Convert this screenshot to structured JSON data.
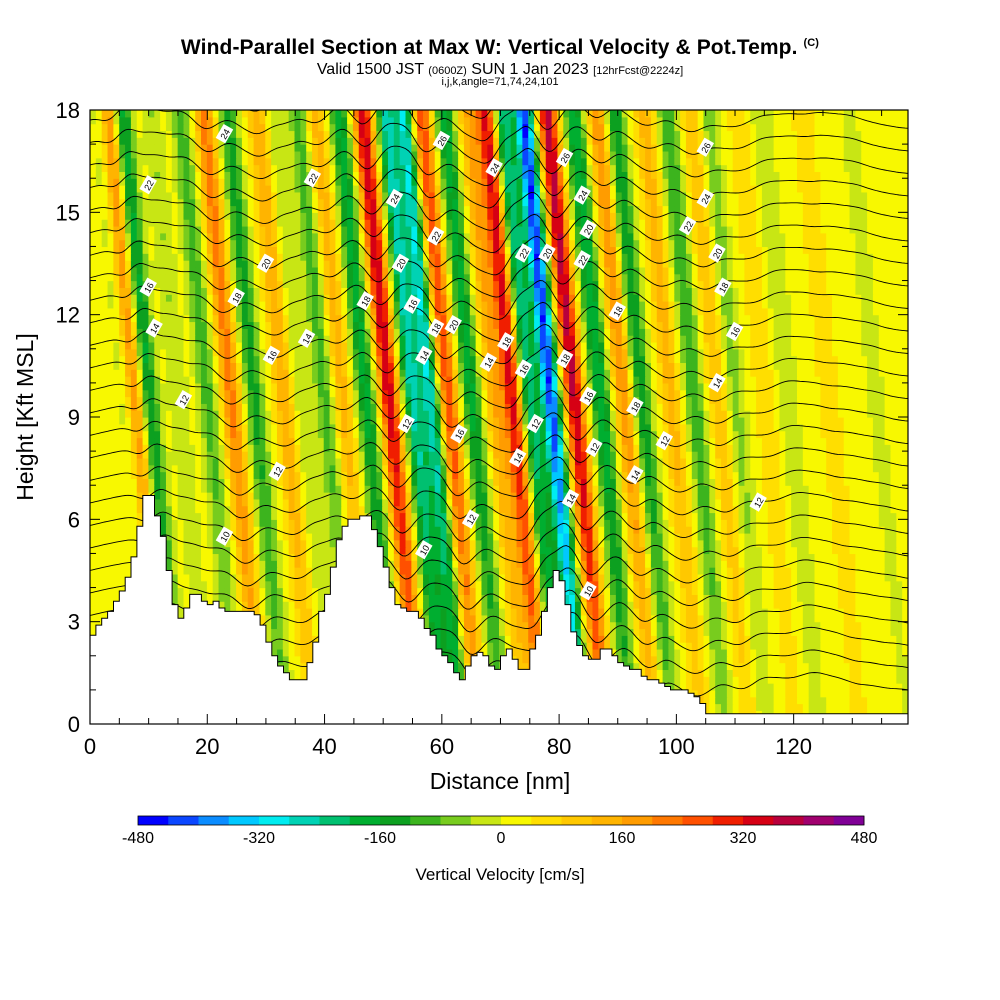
{
  "title": {
    "main": "Wind-Parallel Section at Max W: Vertical Velocity & Pot.Temp.",
    "copyright": "(C)",
    "valid_prefix": "Valid 1500 JST",
    "valid_utc": "(0600Z)",
    "valid_date": "SUN 1 Jan 2023",
    "forecast": "[12hrFcst@2224z]",
    "indices": "i,j,k,angle=71,74,24,101"
  },
  "chart_data": {
    "type": "heatmap",
    "xlabel": "Distance [nm]",
    "ylabel": "Height [Kft MSL]",
    "x_range": [
      0,
      139.5
    ],
    "y_range": [
      0,
      18
    ],
    "x_ticks": [
      0,
      20,
      40,
      60,
      80,
      100,
      120
    ],
    "y_ticks": [
      0,
      3,
      6,
      9,
      12,
      15,
      18
    ],
    "colorbar": {
      "label": "Vertical Velocity [cm/s]",
      "min": -480,
      "max": 480,
      "step": 40,
      "tick_values": [
        -480,
        -320,
        -160,
        0,
        160,
        320,
        480
      ],
      "colors": [
        "#0000ff",
        "#0a46ff",
        "#0a8cff",
        "#00c8ff",
        "#00ecf0",
        "#00d2b4",
        "#00c070",
        "#00ae30",
        "#0ca020",
        "#3cb41e",
        "#78cc1e",
        "#c8e614",
        "#f8f800",
        "#ffde00",
        "#ffc800",
        "#ffb400",
        "#ff9c00",
        "#ff7800",
        "#ff5000",
        "#f01e00",
        "#d60014",
        "#b8003c",
        "#a0006e",
        "#800096"
      ]
    },
    "vertical_velocity_bands": [
      {
        "x": 8.5,
        "w": -100
      },
      {
        "x": 9.5,
        "w": 240
      },
      {
        "x": 12,
        "w": -200
      },
      {
        "x": 17,
        "w": -60
      },
      {
        "x": 22,
        "w": -120
      },
      {
        "x": 26,
        "w": 200
      },
      {
        "x": 30,
        "w": -160
      },
      {
        "x": 35,
        "w": 140
      },
      {
        "x": 38,
        "w": -60
      },
      {
        "x": 42,
        "w": -120
      },
      {
        "x": 45,
        "w": 120
      },
      {
        "x": 49,
        "w": -200
      },
      {
        "x": 53,
        "w": 340
      },
      {
        "x": 57,
        "w": -280
      },
      {
        "x": 60,
        "w": -300
      },
      {
        "x": 63,
        "w": 260
      },
      {
        "x": 67,
        "w": -200
      },
      {
        "x": 71,
        "w": 140
      },
      {
        "x": 74,
        "w": 320
      },
      {
        "x": 77,
        "w": -260
      },
      {
        "x": 80.5,
        "w": -460
      },
      {
        "x": 84.5,
        "w": 360
      },
      {
        "x": 89,
        "w": -220
      },
      {
        "x": 93,
        "w": 180
      },
      {
        "x": 96,
        "w": -180
      },
      {
        "x": 101,
        "w": 120
      },
      {
        "x": 105,
        "w": -140
      },
      {
        "x": 109,
        "w": 100
      },
      {
        "x": 112,
        "w": -80
      },
      {
        "x": 117,
        "w": 60
      },
      {
        "x": 121,
        "w": -60
      },
      {
        "x": 128,
        "w": 60
      },
      {
        "x": 136,
        "w": -40
      }
    ],
    "theta_contour_labels": [
      {
        "x": 23,
        "y": 17.3,
        "text": "24"
      },
      {
        "x": 10,
        "y": 15.8,
        "text": "22"
      },
      {
        "x": 38,
        "y": 16.0,
        "text": "22"
      },
      {
        "x": 60,
        "y": 17.1,
        "text": "26"
      },
      {
        "x": 69,
        "y": 16.3,
        "text": "24"
      },
      {
        "x": 81,
        "y": 16.6,
        "text": "26"
      },
      {
        "x": 84,
        "y": 15.5,
        "text": "24"
      },
      {
        "x": 105,
        "y": 16.9,
        "text": "26"
      },
      {
        "x": 105,
        "y": 15.4,
        "text": "24"
      },
      {
        "x": 52,
        "y": 15.4,
        "text": "24"
      },
      {
        "x": 59,
        "y": 14.3,
        "text": "22"
      },
      {
        "x": 74,
        "y": 13.8,
        "text": "22"
      },
      {
        "x": 78,
        "y": 13.8,
        "text": "20"
      },
      {
        "x": 85,
        "y": 14.5,
        "text": "20"
      },
      {
        "x": 84,
        "y": 13.6,
        "text": "22"
      },
      {
        "x": 102,
        "y": 14.6,
        "text": "22"
      },
      {
        "x": 107,
        "y": 13.8,
        "text": "20"
      },
      {
        "x": 30,
        "y": 13.5,
        "text": "20"
      },
      {
        "x": 53,
        "y": 13.5,
        "text": "20"
      },
      {
        "x": 10,
        "y": 12.8,
        "text": "16"
      },
      {
        "x": 25,
        "y": 12.5,
        "text": "18"
      },
      {
        "x": 47,
        "y": 12.4,
        "text": "18"
      },
      {
        "x": 55,
        "y": 12.3,
        "text": "16"
      },
      {
        "x": 62,
        "y": 11.7,
        "text": "20"
      },
      {
        "x": 59,
        "y": 11.6,
        "text": "18"
      },
      {
        "x": 90,
        "y": 12.1,
        "text": "18"
      },
      {
        "x": 108,
        "y": 12.8,
        "text": "18"
      },
      {
        "x": 110,
        "y": 11.5,
        "text": "16"
      },
      {
        "x": 11,
        "y": 11.6,
        "text": "14"
      },
      {
        "x": 37,
        "y": 11.3,
        "text": "14"
      },
      {
        "x": 31,
        "y": 10.8,
        "text": "16"
      },
      {
        "x": 57,
        "y": 10.8,
        "text": "14"
      },
      {
        "x": 68,
        "y": 10.6,
        "text": "14"
      },
      {
        "x": 71,
        "y": 11.2,
        "text": "18"
      },
      {
        "x": 74,
        "y": 10.4,
        "text": "16"
      },
      {
        "x": 81,
        "y": 10.7,
        "text": "18"
      },
      {
        "x": 85,
        "y": 9.6,
        "text": "16"
      },
      {
        "x": 93,
        "y": 9.3,
        "text": "18"
      },
      {
        "x": 107,
        "y": 10.0,
        "text": "14"
      },
      {
        "x": 16,
        "y": 9.5,
        "text": "12"
      },
      {
        "x": 54,
        "y": 8.8,
        "text": "12"
      },
      {
        "x": 63,
        "y": 8.5,
        "text": "16"
      },
      {
        "x": 76,
        "y": 8.8,
        "text": "12"
      },
      {
        "x": 86,
        "y": 8.1,
        "text": "12"
      },
      {
        "x": 98,
        "y": 8.3,
        "text": "12"
      },
      {
        "x": 73,
        "y": 7.8,
        "text": "14"
      },
      {
        "x": 32,
        "y": 7.4,
        "text": "12"
      },
      {
        "x": 93,
        "y": 7.3,
        "text": "14"
      },
      {
        "x": 82,
        "y": 6.6,
        "text": "14"
      },
      {
        "x": 114,
        "y": 6.5,
        "text": "12"
      },
      {
        "x": 65,
        "y": 6.0,
        "text": "12"
      },
      {
        "x": 23,
        "y": 5.5,
        "text": "10"
      },
      {
        "x": 57,
        "y": 5.1,
        "text": "10"
      },
      {
        "x": 85,
        "y": 3.9,
        "text": "10"
      }
    ],
    "terrain_profile": [
      [
        0,
        2.6
      ],
      [
        1,
        2.9
      ],
      [
        2,
        3.1
      ],
      [
        3,
        3.3
      ],
      [
        4,
        3.6
      ],
      [
        5,
        3.9
      ],
      [
        6,
        4.3
      ],
      [
        7,
        4.9
      ],
      [
        8,
        5.8
      ],
      [
        9,
        6.7
      ],
      [
        10,
        6.7
      ],
      [
        11,
        6.1
      ],
      [
        12,
        5.5
      ],
      [
        13,
        4.5
      ],
      [
        14,
        3.5
      ],
      [
        15,
        3.1
      ],
      [
        16,
        3.4
      ],
      [
        17,
        3.8
      ],
      [
        18,
        3.8
      ],
      [
        19,
        3.6
      ],
      [
        20,
        3.5
      ],
      [
        21,
        3.6
      ],
      [
        22,
        3.4
      ],
      [
        23,
        3.3
      ],
      [
        24,
        3.3
      ],
      [
        26,
        3.3
      ],
      [
        28,
        3.2
      ],
      [
        29,
        2.9
      ],
      [
        30,
        2.4
      ],
      [
        31,
        2.0
      ],
      [
        32,
        1.7
      ],
      [
        33,
        1.5
      ],
      [
        34,
        1.3
      ],
      [
        36,
        1.3
      ],
      [
        37,
        1.8
      ],
      [
        38,
        2.4
      ],
      [
        39,
        3.3
      ],
      [
        40,
        3.8
      ],
      [
        41,
        4.6
      ],
      [
        42,
        5.4
      ],
      [
        43,
        5.8
      ],
      [
        44,
        6.0
      ],
      [
        45,
        6.0
      ],
      [
        46,
        6.1
      ],
      [
        47,
        6.1
      ],
      [
        48,
        5.7
      ],
      [
        49,
        5.2
      ],
      [
        50,
        4.6
      ],
      [
        51,
        4.0
      ],
      [
        52,
        3.5
      ],
      [
        53,
        3.4
      ],
      [
        54,
        3.3
      ],
      [
        55,
        3.3
      ],
      [
        56,
        3.1
      ],
      [
        57,
        2.8
      ],
      [
        58,
        2.6
      ],
      [
        59,
        2.2
      ],
      [
        60,
        2.0
      ],
      [
        61,
        1.8
      ],
      [
        62,
        1.5
      ],
      [
        63,
        1.3
      ],
      [
        64,
        1.7
      ],
      [
        65,
        2.0
      ],
      [
        66,
        2.1
      ],
      [
        67,
        2.0
      ],
      [
        68,
        1.7
      ],
      [
        69,
        1.6
      ],
      [
        70,
        2.0
      ],
      [
        71,
        2.2
      ],
      [
        72,
        1.9
      ],
      [
        73,
        1.6
      ],
      [
        74,
        1.6
      ],
      [
        75,
        2.2
      ],
      [
        76,
        2.6
      ],
      [
        77,
        3.3
      ],
      [
        78,
        4.0
      ],
      [
        79,
        4.5
      ],
      [
        80,
        4.2
      ],
      [
        81,
        3.5
      ],
      [
        82,
        2.7
      ],
      [
        83,
        2.3
      ],
      [
        84,
        2.0
      ],
      [
        85,
        1.9
      ],
      [
        86,
        1.9
      ],
      [
        87,
        2.2
      ],
      [
        88,
        2.2
      ],
      [
        89,
        2.0
      ],
      [
        90,
        1.8
      ],
      [
        91,
        1.7
      ],
      [
        92,
        1.6
      ],
      [
        93,
        1.6
      ],
      [
        94,
        1.4
      ],
      [
        95,
        1.3
      ],
      [
        96,
        1.3
      ],
      [
        97,
        1.2
      ],
      [
        98,
        1.1
      ],
      [
        99,
        1.0
      ],
      [
        100,
        1.0
      ],
      [
        102,
        0.9
      ],
      [
        103,
        0.8
      ],
      [
        104,
        0.6
      ],
      [
        105,
        0.3
      ],
      [
        106,
        0.3
      ],
      [
        120,
        0.3
      ],
      [
        139.5,
        0.3
      ]
    ],
    "grid": false
  }
}
